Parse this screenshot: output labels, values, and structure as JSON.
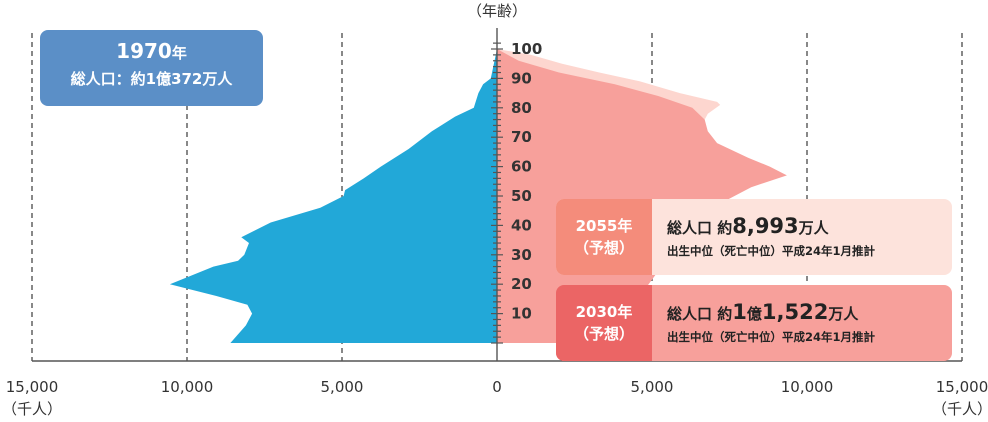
{
  "chart_data": {
    "type": "area",
    "subtype": "population-pyramid",
    "age_axis_label": "（年齢）",
    "age_ticks": [
      "100",
      "90",
      "80",
      "70",
      "60",
      "50",
      "40",
      "30",
      "20",
      "10"
    ],
    "x_ticks_left": [
      "15,000",
      "10,000",
      "5,000",
      "0"
    ],
    "x_ticks_right": [
      "5,000",
      "10,000",
      "15,000"
    ],
    "x_unit_label": "（千人）",
    "xlim": [
      -15000,
      15000
    ],
    "ylim": [
      0,
      100
    ],
    "grid": "dashed vertical at every 5,000",
    "series": [
      {
        "name": "1970年",
        "side": "left",
        "color": "#22a8d8",
        "points": [
          [
            100,
            0
          ],
          [
            90,
            200
          ],
          [
            88,
            450
          ],
          [
            85,
            600
          ],
          [
            80,
            750
          ],
          [
            77,
            1350
          ],
          [
            72,
            2100
          ],
          [
            66,
            2850
          ],
          [
            60,
            3750
          ],
          [
            56,
            4300
          ],
          [
            52,
            4900
          ],
          [
            50,
            4950
          ],
          [
            46,
            5700
          ],
          [
            41,
            7300
          ],
          [
            36,
            8250
          ],
          [
            34,
            8000
          ],
          [
            30,
            8150
          ],
          [
            28,
            8350
          ],
          [
            26,
            9150
          ],
          [
            20,
            10550
          ],
          [
            16,
            9050
          ],
          [
            13,
            8050
          ],
          [
            10,
            7900
          ],
          [
            6,
            8100
          ],
          [
            0,
            8600
          ]
        ]
      },
      {
        "name": "2055年（予想）",
        "side": "right",
        "color": "#fdd6cf",
        "points": [
          [
            100,
            0
          ],
          [
            98,
            1100
          ],
          [
            95,
            2100
          ],
          [
            92,
            3300
          ],
          [
            89,
            4600
          ],
          [
            85,
            5900
          ],
          [
            82,
            7100
          ],
          [
            81,
            7200
          ],
          [
            78,
            6800
          ],
          [
            74,
            6600
          ],
          [
            71,
            6600
          ],
          [
            66,
            6200
          ],
          [
            63,
            6000
          ],
          [
            60,
            6000
          ],
          [
            55,
            5900
          ],
          [
            50,
            5800
          ],
          [
            45,
            5650
          ],
          [
            40,
            5400
          ],
          [
            35,
            5150
          ],
          [
            30,
            4850
          ],
          [
            25,
            4650
          ],
          [
            20,
            4450
          ],
          [
            15,
            4200
          ],
          [
            10,
            3900
          ],
          [
            5,
            3650
          ],
          [
            0,
            3350
          ]
        ]
      },
      {
        "name": "2030年（予想）",
        "side": "right",
        "color": "#f7a09b",
        "points": [
          [
            100,
            0
          ],
          [
            96,
            700
          ],
          [
            92,
            2000
          ],
          [
            88,
            3800
          ],
          [
            84,
            5200
          ],
          [
            80,
            6300
          ],
          [
            76,
            6700
          ],
          [
            72,
            6800
          ],
          [
            68,
            7100
          ],
          [
            63,
            8100
          ],
          [
            60,
            8800
          ],
          [
            57,
            9350
          ],
          [
            53,
            8200
          ],
          [
            48,
            7300
          ],
          [
            43,
            6800
          ],
          [
            38,
            6300
          ],
          [
            33,
            5850
          ],
          [
            28,
            5400
          ],
          [
            23,
            5100
          ],
          [
            18,
            4750
          ],
          [
            13,
            4450
          ],
          [
            8,
            4150
          ],
          [
            3,
            3850
          ],
          [
            0,
            3800
          ]
        ]
      }
    ],
    "annotations": [
      {
        "year": "1970",
        "unit": "年",
        "text": "総人口：約1億372万人"
      },
      {
        "tag_year": "2055年",
        "tag_note": "（予想）",
        "total_prefix": "総人口 約",
        "total_big": "8,993",
        "total_suffix": "万人",
        "note": "出生中位（死亡中位）平成24年1月推計"
      },
      {
        "tag_year": "2030年",
        "tag_note": "（予想）",
        "total_prefix": "総人口 約",
        "total_big_1": "1",
        "total_mid": "億",
        "total_big_2": "1,522",
        "total_suffix": "万人",
        "note": "出生中位（死亡中位）平成24年1月推計"
      }
    ]
  }
}
